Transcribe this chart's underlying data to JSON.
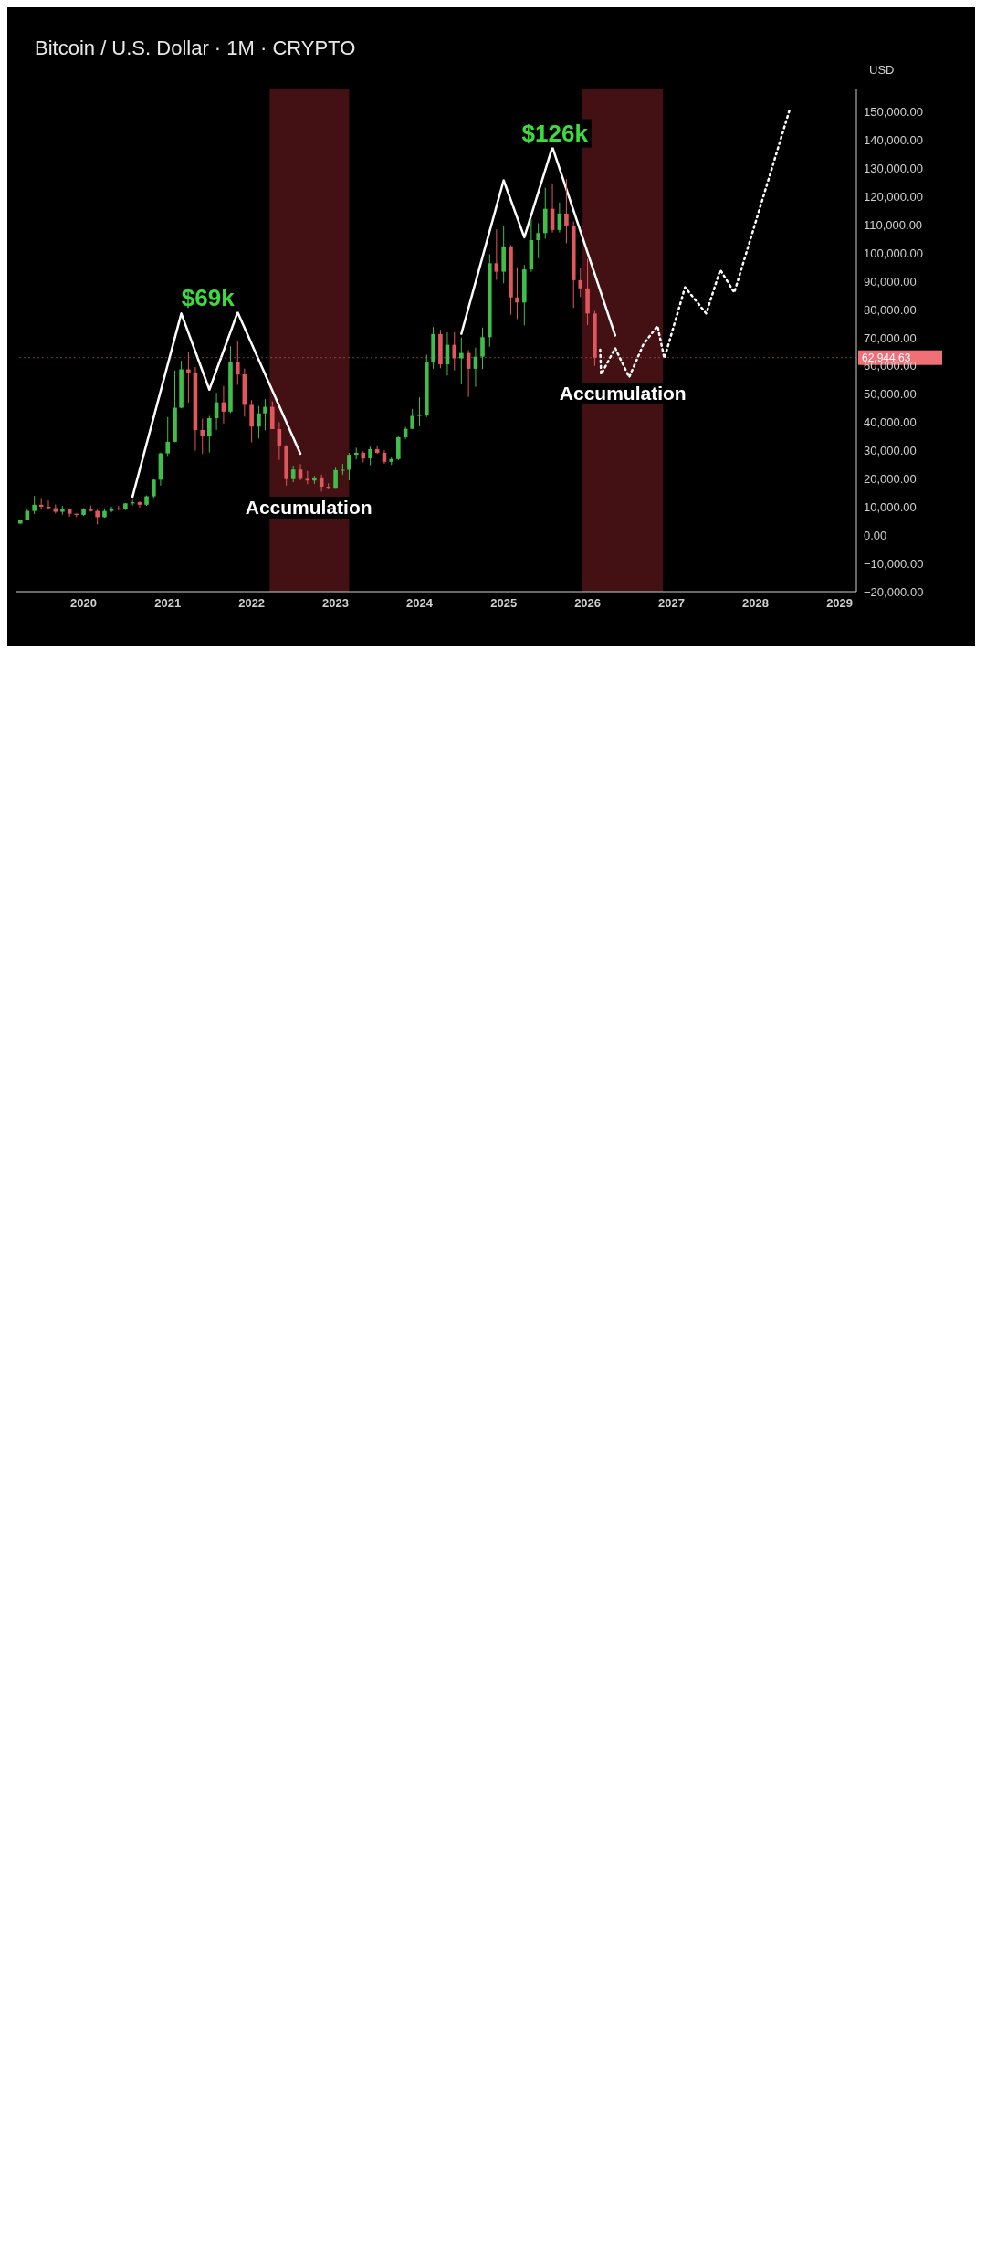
{
  "chart_data": {
    "type": "candlestick",
    "title": "Bitcoin / U.S. Dollar · 1M · CRYPTO",
    "ylabel": "USD",
    "x": [
      "2019-04",
      "2019-05",
      "2019-06",
      "2019-07",
      "2019-08",
      "2019-09",
      "2019-10",
      "2019-11",
      "2019-12",
      "2020-01",
      "2020-02",
      "2020-03",
      "2020-04",
      "2020-05",
      "2020-06",
      "2020-07",
      "2020-08",
      "2020-09",
      "2020-10",
      "2020-11",
      "2020-12",
      "2021-01",
      "2021-02",
      "2021-03",
      "2021-04",
      "2021-05",
      "2021-06",
      "2021-07",
      "2021-08",
      "2021-09",
      "2021-10",
      "2021-11",
      "2021-12",
      "2022-01",
      "2022-02",
      "2022-03",
      "2022-04",
      "2022-05",
      "2022-06",
      "2022-07",
      "2022-08",
      "2022-09",
      "2022-10",
      "2022-11",
      "2022-12",
      "2023-01",
      "2023-02",
      "2023-03",
      "2023-04",
      "2023-05",
      "2023-06",
      "2023-07",
      "2023-08",
      "2023-09",
      "2023-10",
      "2023-11",
      "2023-12",
      "2024-01",
      "2024-02",
      "2024-03",
      "2024-04",
      "2024-05",
      "2024-06",
      "2024-07",
      "2024-08",
      "2024-09",
      "2024-10",
      "2024-11",
      "2024-12",
      "2025-01",
      "2025-02",
      "2025-03",
      "2025-04",
      "2025-05",
      "2025-06",
      "2025-07",
      "2025-08",
      "2025-09",
      "2025-10",
      "2025-11",
      "2025-12",
      "2026-01",
      "2026-02"
    ],
    "ohlc": [
      [
        4100,
        5600,
        4100,
        5300
      ],
      [
        5300,
        9100,
        5300,
        8600
      ],
      [
        8600,
        13900,
        7500,
        10800
      ],
      [
        10800,
        13200,
        9100,
        10100
      ],
      [
        10100,
        12300,
        9400,
        9600
      ],
      [
        9600,
        10900,
        7700,
        8300
      ],
      [
        8300,
        10400,
        7300,
        9200
      ],
      [
        9200,
        9500,
        6500,
        7600
      ],
      [
        7600,
        7700,
        6400,
        7200
      ],
      [
        7200,
        9600,
        6900,
        9400
      ],
      [
        9400,
        10500,
        8400,
        8600
      ],
      [
        8600,
        9200,
        3800,
        6400
      ],
      [
        6400,
        9500,
        6200,
        8600
      ],
      [
        8600,
        10100,
        8100,
        9500
      ],
      [
        9500,
        10400,
        8800,
        9100
      ],
      [
        9100,
        11400,
        8900,
        11300
      ],
      [
        11300,
        12500,
        10600,
        11700
      ],
      [
        11700,
        12100,
        9800,
        10800
      ],
      [
        10800,
        14100,
        10400,
        13800
      ],
      [
        13800,
        19900,
        13200,
        19700
      ],
      [
        19700,
        29300,
        17600,
        29000
      ],
      [
        29000,
        41900,
        28100,
        33100
      ],
      [
        33100,
        58400,
        33000,
        45200
      ],
      [
        45200,
        61800,
        45000,
        58800
      ],
      [
        58800,
        64900,
        47000,
        57700
      ],
      [
        57700,
        59600,
        30000,
        37300
      ],
      [
        37300,
        41300,
        28800,
        35000
      ],
      [
        35000,
        42300,
        29300,
        41500
      ],
      [
        41500,
        50500,
        37300,
        47100
      ],
      [
        47100,
        52900,
        39600,
        43800
      ],
      [
        43800,
        67000,
        43300,
        61300
      ],
      [
        61300,
        69000,
        53300,
        57000
      ],
      [
        57000,
        59100,
        42000,
        46200
      ],
      [
        46200,
        47900,
        32900,
        38500
      ],
      [
        38500,
        45800,
        34300,
        43200
      ],
      [
        43200,
        48200,
        37200,
        45500
      ],
      [
        45500,
        47400,
        37600,
        37600
      ],
      [
        37600,
        40000,
        26700,
        31800
      ],
      [
        31800,
        31900,
        17600,
        19900
      ],
      [
        19900,
        24700,
        18800,
        23300
      ],
      [
        23300,
        25200,
        19500,
        20000
      ],
      [
        20000,
        22800,
        18100,
        19400
      ],
      [
        19400,
        21000,
        18200,
        20500
      ],
      [
        20500,
        21500,
        15500,
        17200
      ],
      [
        17200,
        18400,
        16300,
        16500
      ],
      [
        16500,
        23900,
        16500,
        23100
      ],
      [
        23100,
        25300,
        21400,
        23200
      ],
      [
        23200,
        29200,
        19500,
        28500
      ],
      [
        28500,
        31000,
        26900,
        29200
      ],
      [
        29200,
        29800,
        25800,
        27200
      ],
      [
        27200,
        31400,
        24800,
        30500
      ],
      [
        30500,
        31800,
        28900,
        29200
      ],
      [
        29200,
        30200,
        25300,
        26000
      ],
      [
        26000,
        27500,
        24900,
        27000
      ],
      [
        27000,
        35000,
        26600,
        34700
      ],
      [
        34700,
        38400,
        34100,
        37700
      ],
      [
        37700,
        44700,
        37600,
        42300
      ],
      [
        42300,
        48900,
        38600,
        42600
      ],
      [
        42600,
        64000,
        41900,
        61200
      ],
      [
        61200,
        73800,
        59000,
        71300
      ],
      [
        71300,
        72800,
        59200,
        60600
      ],
      [
        60600,
        71900,
        56600,
        67500
      ],
      [
        67500,
        72000,
        58400,
        62700
      ],
      [
        62700,
        70000,
        53500,
        64600
      ],
      [
        64600,
        65600,
        49000,
        59000
      ],
      [
        59000,
        66500,
        52600,
        63300
      ],
      [
        63300,
        73600,
        58900,
        70200
      ],
      [
        70200,
        99600,
        66800,
        96400
      ],
      [
        96400,
        108400,
        90500,
        93400
      ],
      [
        93400,
        109600,
        89300,
        102400
      ],
      [
        102400,
        102800,
        78200,
        84300
      ],
      [
        84300,
        95000,
        76600,
        82500
      ],
      [
        82500,
        95800,
        74400,
        94200
      ],
      [
        94200,
        112000,
        93400,
        104600
      ],
      [
        104600,
        110600,
        98200,
        107100
      ],
      [
        107100,
        123200,
        105100,
        115700
      ],
      [
        115700,
        124500,
        107300,
        108200
      ],
      [
        108200,
        117900,
        107300,
        114000
      ],
      [
        114000,
        126200,
        103500,
        109500
      ],
      [
        109500,
        111200,
        80600,
        90400
      ],
      [
        90400,
        94600,
        84400,
        87500
      ],
      [
        87500,
        97900,
        74500,
        78600
      ],
      [
        78600,
        79500,
        60000,
        62900
      ]
    ],
    "colors": [
      "#3fbf4a",
      "#3fbf4a",
      "#3fbf4a",
      "#e0585c",
      "#e0585c",
      "#e0585c",
      "#3fbf4a",
      "#e0585c",
      "#e0585c",
      "#3fbf4a",
      "#e0585c",
      "#e0585c",
      "#3fbf4a",
      "#3fbf4a",
      "#e0585c",
      "#3fbf4a",
      "#3fbf4a",
      "#e0585c",
      "#3fbf4a",
      "#3fbf4a",
      "#3fbf4a",
      "#3fbf4a",
      "#3fbf4a",
      "#3fbf4a",
      "#e0585c",
      "#e0585c",
      "#e0585c",
      "#3fbf4a",
      "#3fbf4a",
      "#e0585c",
      "#3fbf4a",
      "#e0585c",
      "#e0585c",
      "#e0585c",
      "#3fbf4a",
      "#3fbf4a",
      "#e0585c",
      "#e0585c",
      "#e0585c",
      "#3fbf4a",
      "#e0585c",
      "#e0585c",
      "#3fbf4a",
      "#e0585c",
      "#e0585c",
      "#3fbf4a",
      "#3fbf4a",
      "#3fbf4a",
      "#3fbf4a",
      "#e0585c",
      "#3fbf4a",
      "#e0585c",
      "#e0585c",
      "#3fbf4a",
      "#3fbf4a",
      "#3fbf4a",
      "#3fbf4a",
      "#3fbf4a",
      "#3fbf4a",
      "#3fbf4a",
      "#e0585c",
      "#3fbf4a",
      "#e0585c",
      "#3fbf4a",
      "#e0585c",
      "#3fbf4a",
      "#3fbf4a",
      "#3fbf4a",
      "#e0585c",
      "#3fbf4a",
      "#e0585c",
      "#e0585c",
      "#3fbf4a",
      "#3fbf4a",
      "#3fbf4a",
      "#3fbf4a",
      "#e0585c",
      "#3fbf4a",
      "#e0585c",
      "#e0585c",
      "#e0585c",
      "#e0585c",
      "#e0585c"
    ],
    "series": [
      {
        "type": "line",
        "color": "#ffffff",
        "line_style": "solid",
        "x": [
          "2020-08",
          "2021-03",
          "2021-07",
          "2021-11",
          "2022-08"
        ],
        "values": [
          13700,
          78600,
          51600,
          79000,
          28900
        ]
      },
      {
        "type": "line",
        "color": "#ffffff",
        "line_style": "solid",
        "x": [
          "2024-07",
          "2025-01",
          "2025-04",
          "2025-08",
          "2026-05"
        ],
        "values": [
          71400,
          125800,
          105600,
          137600,
          70800
        ]
      },
      {
        "type": "line",
        "color": "#ffffff",
        "line_style": "dotted",
        "x": [
          "2026-02-25",
          "2026-03",
          "2026-05",
          "2026-07",
          "2026-09",
          "2026-11",
          "2026-12",
          "2027-03",
          "2027-06",
          "2027-08",
          "2027-10",
          "2028-06"
        ],
        "values": [
          65800,
          57000,
          66300,
          56000,
          67700,
          74200,
          62700,
          87900,
          78600,
          94100,
          86000,
          151700
        ]
      }
    ],
    "bands": [
      {
        "axis": "x",
        "from": "2022-03-20",
        "to": "2023-03-01",
        "color": "#7a1e24"
      },
      {
        "axis": "x",
        "from": "2025-12-10",
        "to": "2026-11-25",
        "color": "#7a1e24"
      }
    ],
    "ref_lines": [
      {
        "axis": "y",
        "value": 62944.63,
        "label": "62,944.63",
        "color": "#f07078"
      }
    ],
    "annotations": [
      "$69k",
      "$126k",
      "Accumulation",
      "Accumulation"
    ],
    "xlim": [
      "2019-03-15",
      "2029-03-15"
    ],
    "xticks": [
      "2020",
      "2021",
      "2022",
      "2023",
      "2024",
      "2025",
      "2026",
      "2027",
      "2028",
      "2029"
    ],
    "ylim": [
      -20000,
      158000
    ],
    "yticks": [
      {
        "value": -20000,
        "label": "−20,000.00"
      },
      {
        "value": -10000,
        "label": "−10,000.00"
      },
      {
        "value": 0,
        "label": "0.00"
      },
      {
        "value": 10000,
        "label": "10,000.00"
      },
      {
        "value": 20000,
        "label": "20,000.00"
      },
      {
        "value": 30000,
        "label": "30,000.00"
      },
      {
        "value": 40000,
        "label": "40,000.00"
      },
      {
        "value": 50000,
        "label": "50,000.00"
      },
      {
        "value": 60000,
        "label": "60,000.00"
      },
      {
        "value": 70000,
        "label": "70,000.00"
      },
      {
        "value": 80000,
        "label": "80,000.00"
      },
      {
        "value": 90000,
        "label": "90,000.00"
      },
      {
        "value": 100000,
        "label": "100,000.00"
      },
      {
        "value": 110000,
        "label": "110,000.00"
      },
      {
        "value": 120000,
        "label": "120,000.00"
      },
      {
        "value": 130000,
        "label": "130,000.00"
      },
      {
        "value": 140000,
        "label": "140,000.00"
      },
      {
        "value": 150000,
        "label": "150,000.00"
      }
    ],
    "grid": false
  }
}
